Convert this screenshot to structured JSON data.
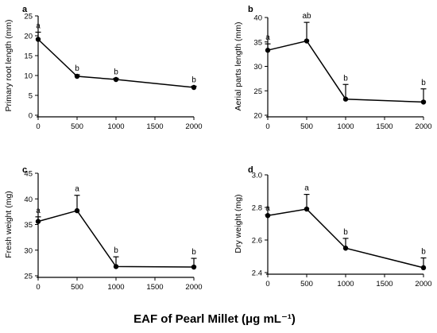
{
  "x_title": "EAF of Pearl Millet (μg mL⁻¹)",
  "chart_data": [
    {
      "type": "line",
      "panel": "a",
      "ylabel": "Primary root length (mm)",
      "xlim": [
        0,
        2000
      ],
      "ylim": [
        0,
        25
      ],
      "x_ticks": [
        0,
        500,
        1000,
        1500,
        2000
      ],
      "y_ticks": [
        0,
        5,
        10,
        15,
        20,
        25
      ],
      "x": [
        0,
        500,
        1000,
        2000
      ],
      "values": [
        19.1,
        9.8,
        9.0,
        7.0
      ],
      "error": [
        1.8,
        0.4,
        0.3,
        0.3
      ],
      "labels": [
        "a",
        "b",
        "b",
        "b"
      ]
    },
    {
      "type": "line",
      "panel": "b",
      "ylabel": "Aerial parts length (mm)",
      "xlim": [
        0,
        2000
      ],
      "ylim": [
        20,
        40
      ],
      "x_ticks": [
        0,
        500,
        1000,
        1500,
        2000
      ],
      "y_ticks": [
        20,
        25,
        30,
        35,
        40
      ],
      "x": [
        0,
        500,
        1000,
        2000
      ],
      "values": [
        33.3,
        35.2,
        23.3,
        22.7
      ],
      "error": [
        1.3,
        3.8,
        3.0,
        2.7
      ],
      "labels": [
        "a",
        "ab",
        "b",
        "b"
      ]
    },
    {
      "type": "line",
      "panel": "c",
      "ylabel": "Fresh weight (mg)",
      "xlim": [
        0,
        2000
      ],
      "ylim": [
        25,
        45
      ],
      "x_ticks": [
        0,
        500,
        1000,
        1500,
        2000
      ],
      "y_ticks": [
        25,
        30,
        35,
        40,
        45
      ],
      "x": [
        0,
        500,
        1000,
        2000
      ],
      "values": [
        35.6,
        37.7,
        26.8,
        26.7
      ],
      "error": [
        0.9,
        3.0,
        1.9,
        1.7
      ],
      "labels": [
        "a",
        "a",
        "b",
        "b"
      ]
    },
    {
      "type": "line",
      "panel": "d",
      "ylabel": "Dry weight (mg)",
      "xlim": [
        0,
        2000
      ],
      "ylim": [
        2.4,
        3.0
      ],
      "x_ticks": [
        0,
        500,
        1000,
        1500,
        2000
      ],
      "y_ticks": [
        2.4,
        2.6,
        2.8,
        3.0
      ],
      "y_decimals": 1,
      "x": [
        0,
        500,
        1000,
        2000
      ],
      "values": [
        2.75,
        2.79,
        2.55,
        2.43
      ],
      "error": [
        0.005,
        0.09,
        0.06,
        0.06
      ],
      "labels": [
        "a",
        "a",
        "b",
        "b"
      ]
    }
  ]
}
